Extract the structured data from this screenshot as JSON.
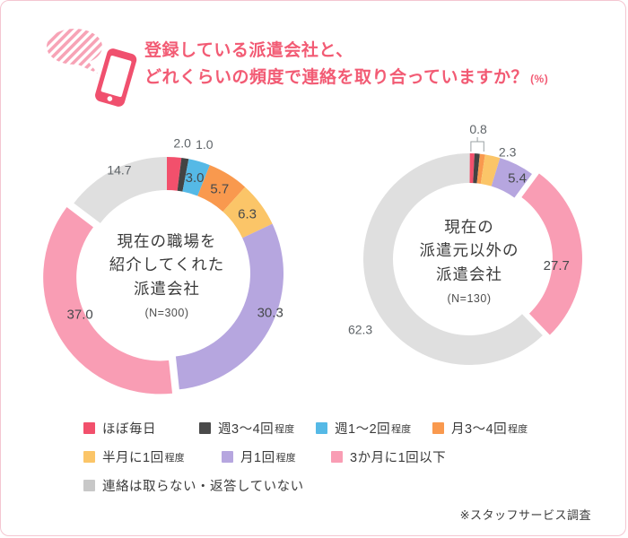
{
  "header": {
    "title_line1": "登録している派遣会社と、",
    "title_line2": "どれくらいの頻度で連絡を取り合っていますか？",
    "title_suffix": "(%)",
    "icon": "smartphone-with-speech-bubble-icon"
  },
  "footer": {
    "source_note": "※スタッフサービス調査"
  },
  "palette": {
    "red": "#F2506C",
    "dark": "#434343",
    "blue": "#55B9E6",
    "orange": "#F9994E",
    "yellow": "#FBC568",
    "purple": "#B6A6DF",
    "pink": "#F99DB4",
    "gray": "#DFDFDF",
    "legend_gray": "#C8C8C8",
    "accent": "#F25B74"
  },
  "legend": {
    "items": [
      {
        "color": "#F2506C",
        "label": "ほぼ毎日",
        "suffix": ""
      },
      {
        "color": "#4A4A4A",
        "label": "週3〜4回",
        "suffix": "程度"
      },
      {
        "color": "#55B9E6",
        "label": "週1〜2回",
        "suffix": "程度"
      },
      {
        "color": "#F9994E",
        "label": "月3〜4回",
        "suffix": "程度"
      },
      {
        "color": "#FBC568",
        "label": "半月に1回",
        "suffix": "程度"
      },
      {
        "color": "#B6A6DF",
        "label": "月1回",
        "suffix": "程度"
      },
      {
        "color": "#F99DB4",
        "label": "3か月に1回以下",
        "suffix": ""
      },
      {
        "color": "#C8C8C8",
        "label": "連絡は取らない・返答していない",
        "suffix": ""
      }
    ]
  },
  "chart_data": [
    {
      "type": "pie",
      "variant": "donut",
      "center_label": "現在の職場を\n紹介してくれた\n派遣会社",
      "n_label": "(N=300)",
      "unit": "%",
      "slices": [
        {
          "name": "ほぼ毎日",
          "color": "red",
          "value": 2.0,
          "label": "2.0",
          "label_pos": "outside"
        },
        {
          "name": "週3〜4回程度",
          "color": "dark",
          "value": 1.0,
          "label": "1.0",
          "label_pos": "outside"
        },
        {
          "name": "週1〜2回程度",
          "color": "blue",
          "value": 3.0,
          "label": "3.0",
          "label_pos": "inside"
        },
        {
          "name": "月3〜4回程度",
          "color": "orange",
          "value": 5.7,
          "label": "5.7",
          "label_pos": "inside"
        },
        {
          "name": "半月に1回程度",
          "color": "yellow",
          "value": 6.3,
          "label": "6.3",
          "label_pos": "inside"
        },
        {
          "name": "月1回程度",
          "color": "purple",
          "value": 30.3,
          "label": "30.3",
          "label_pos": "inside"
        },
        {
          "name": "3か月に1回以下",
          "color": "pink",
          "value": 37.0,
          "label": "37.0",
          "label_pos": "inside",
          "exploded": true
        },
        {
          "name": "連絡は取らない・返答していない",
          "color": "gray",
          "value": 14.7,
          "label": "14.7",
          "label_pos": "outside"
        }
      ]
    },
    {
      "type": "pie",
      "variant": "donut",
      "center_label": "現在の\n派遣元以外の\n派遣会社",
      "n_label": "(N=130)",
      "unit": "%",
      "bracket_label": "0.8",
      "slices": [
        {
          "name": "ほぼ毎日",
          "color": "red",
          "value": 0.8,
          "label": "0.8",
          "label_pos": "group"
        },
        {
          "name": "週3〜4回程度",
          "color": "dark",
          "value": 0.8,
          "label": "0.8",
          "label_pos": "group"
        },
        {
          "name": "週1〜2回程度",
          "color": "blue",
          "value": 0.0,
          "label": "",
          "label_pos": "none"
        },
        {
          "name": "月3〜4回程度",
          "color": "orange",
          "value": 0.8,
          "label": "0.8",
          "label_pos": "group"
        },
        {
          "name": "半月に1回程度",
          "color": "yellow",
          "value": 2.3,
          "label": "2.3",
          "label_pos": "outside"
        },
        {
          "name": "月1回程度",
          "color": "purple",
          "value": 5.4,
          "label": "5.4",
          "label_pos": "inside"
        },
        {
          "name": "3か月に1回以下",
          "color": "pink",
          "value": 27.7,
          "label": "27.7",
          "label_pos": "inside",
          "exploded": true
        },
        {
          "name": "連絡は取らない・返答していない",
          "color": "gray",
          "value": 62.3,
          "label": "62.3",
          "label_pos": "outside"
        }
      ]
    }
  ]
}
